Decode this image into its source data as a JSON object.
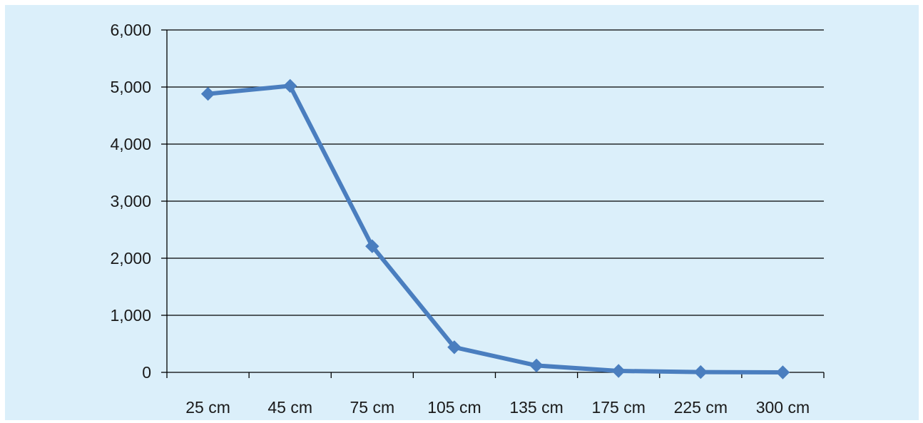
{
  "chart_data": {
    "type": "line",
    "title": "",
    "xlabel": "",
    "ylabel": "",
    "categories": [
      "25 cm",
      "45 cm",
      "75 cm",
      "105 cm",
      "135 cm",
      "175 cm",
      "225 cm",
      "300 cm"
    ],
    "series": [
      {
        "values": [
          4880,
          5020,
          2210,
          440,
          120,
          25,
          5,
          0
        ]
      }
    ],
    "ylim": [
      0,
      6000
    ],
    "y_ticks": [
      0,
      1000,
      2000,
      3000,
      4000,
      5000,
      6000
    ],
    "y_tick_labels": [
      "0",
      "1,000",
      "2,000",
      "3,000",
      "4,000",
      "5,000",
      "6,000"
    ],
    "grid": true,
    "legend": "none",
    "colors": {
      "background": "#dbeffa",
      "line": "#4a7ebf",
      "gridline": "#000000"
    }
  }
}
